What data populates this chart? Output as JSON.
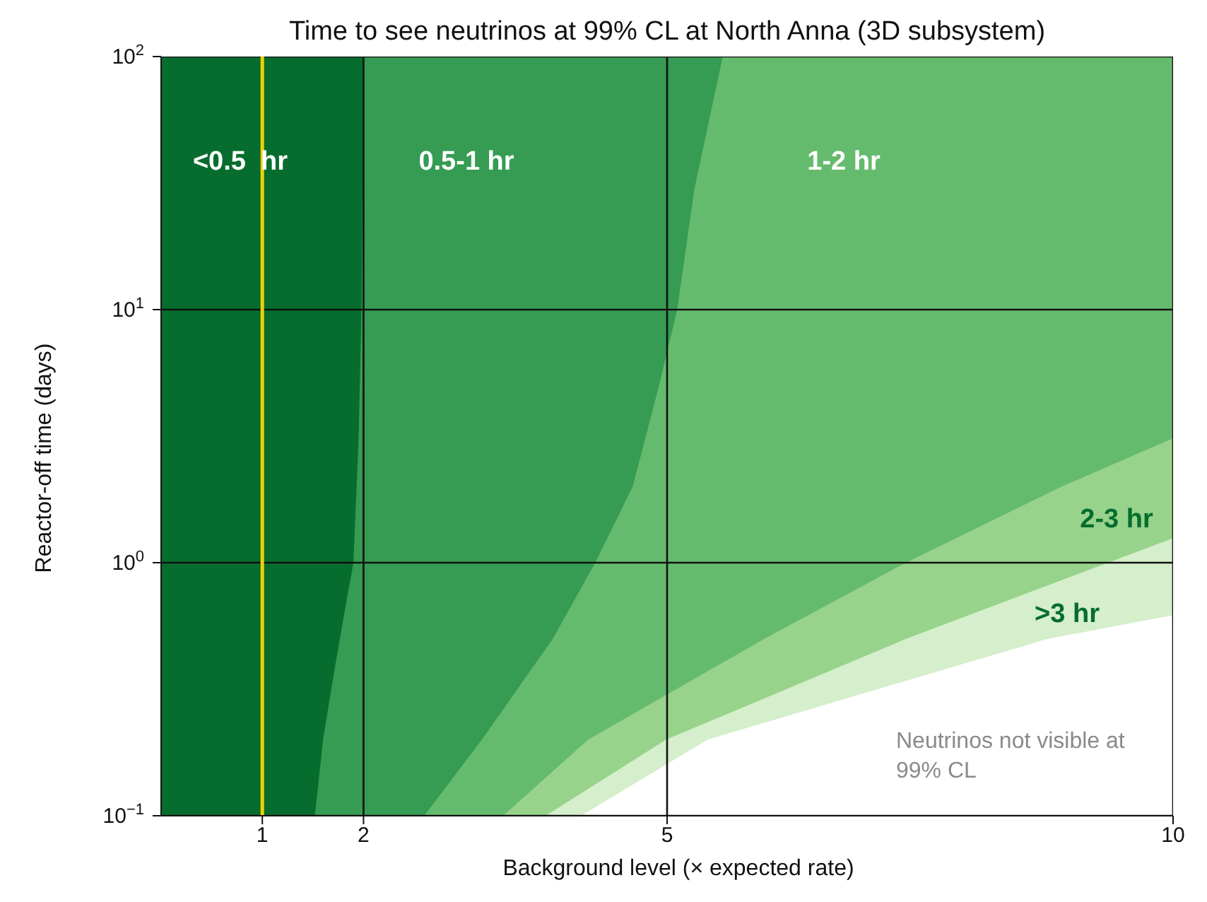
{
  "chart_data": {
    "type": "area",
    "title": "Time to see neutrinos at 99% CL at North Anna (3D subsystem)",
    "xlabel": "Background level (× expected rate)",
    "ylabel": "Reactor-off time (days)",
    "xlim": [
      0,
      10
    ],
    "xticks": [
      1,
      2,
      5,
      10
    ],
    "ylim": [
      0.1,
      100
    ],
    "log": "y",
    "yticks": [
      {
        "value": 0.1,
        "label": "10$^{−1}$"
      },
      {
        "value": 1,
        "label": "10$^{0}$"
      },
      {
        "value": 10,
        "label": "10$^{1}$"
      },
      {
        "value": 100,
        "label": "10$^{2}$"
      }
    ],
    "grid": true,
    "series": [
      {
        "name": "<0.5  hr",
        "color": "#066d2e",
        "x": [
          0,
          2.0
        ],
        "values": [
          100,
          100
        ]
      },
      {
        "name": "0.5-1 hr",
        "color": "#369b53",
        "x": [
          1.52,
          1.6,
          1.7,
          1.8,
          1.9,
          1.95,
          1.98,
          2.0,
          5.55
        ],
        "values": [
          0.1,
          0.2,
          0.35,
          0.6,
          1,
          3,
          10,
          100,
          100
        ]
      },
      {
        "name": "1-2 hr",
        "color": "#65bb6d",
        "x": [
          2.6,
          3.17,
          3.87,
          4.29,
          4.66,
          4.92,
          5.1,
          5.27,
          5.55,
          10
        ],
        "values": [
          0.1,
          0.2,
          0.5,
          1,
          2,
          5,
          10,
          30,
          100,
          100
        ]
      },
      {
        "name": "2-3 hr",
        "color": "#97d38b",
        "x": [
          3.38,
          4.22,
          5.96,
          7.36,
          8.9,
          10
        ],
        "values": [
          0.1,
          0.2,
          0.5,
          1,
          2,
          3.1
        ]
      },
      {
        "name": ">3 hr",
        "color": "#d5eecb",
        "x": [
          3.8,
          4.99,
          7.36,
          10
        ],
        "values": [
          0.1,
          0.2,
          0.5,
          1.25
        ]
      },
      {
        "name": "Neutrinos not visible at 99% CL",
        "color": "#ffffff",
        "x": [
          4.15,
          5.4,
          8.76,
          10
        ],
        "values": [
          0.1,
          0.2,
          0.5,
          0.62
        ]
      }
    ],
    "ref_lines": [
      {
        "axis": "x",
        "value": 1,
        "color": "#f5d000"
      }
    ]
  }
}
